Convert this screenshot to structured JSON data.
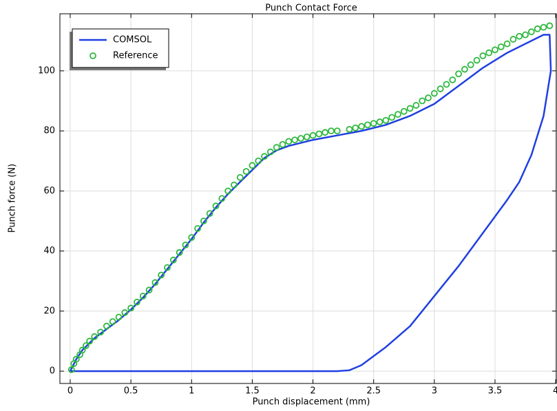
{
  "chart_data": {
    "type": "line",
    "title": "Punch Contact Force",
    "x_label": "Punch displacement (mm)",
    "y_label": "Punch force (N)",
    "xlim": [
      -0.085,
      4.005
    ],
    "ylim": [
      -4.1,
      119
    ],
    "xticks": [
      0,
      0.5,
      1,
      1.5,
      2,
      2.5,
      3,
      3.5,
      4
    ],
    "yticks": [
      0,
      20,
      40,
      60,
      80,
      100
    ],
    "grid": true,
    "legend_loc": "upper left",
    "series": [
      {
        "name": "COMSOL",
        "type": "line",
        "color": "#1f3fe0",
        "x": [
          0,
          0.05,
          0.1,
          0.2,
          0.3,
          0.4,
          0.5,
          0.6,
          0.7,
          0.8,
          0.9,
          1.0,
          1.1,
          1.2,
          1.3,
          1.4,
          1.5,
          1.6,
          1.7,
          1.8,
          1.9,
          2.0,
          2.2,
          2.4,
          2.6,
          2.8,
          3.0,
          3.2,
          3.4,
          3.6,
          3.8,
          3.9,
          3.95,
          3.96,
          3.9,
          3.8,
          3.7,
          3.6,
          3.4,
          3.2,
          3.0,
          2.8,
          2.6,
          2.5,
          2.4,
          2.3,
          2.2,
          0
        ],
        "values": [
          0,
          4,
          7,
          11,
          14,
          17,
          20.5,
          24.5,
          29,
          34,
          39,
          44,
          49.5,
          54.5,
          59,
          63,
          67,
          71,
          73.5,
          75,
          76,
          77,
          78.5,
          80,
          82,
          85,
          89,
          95,
          101,
          106,
          110,
          112,
          112,
          100,
          85,
          72,
          63,
          57,
          46,
          35,
          25,
          15,
          8,
          5,
          2,
          0.3,
          0,
          0
        ]
      },
      {
        "name": "Reference",
        "type": "scatter",
        "color": "#2db83d",
        "x": [
          0.01,
          0.03,
          0.05,
          0.08,
          0.1,
          0.13,
          0.16,
          0.2,
          0.25,
          0.3,
          0.35,
          0.4,
          0.45,
          0.5,
          0.55,
          0.6,
          0.65,
          0.7,
          0.75,
          0.8,
          0.85,
          0.9,
          0.95,
          1.0,
          1.05,
          1.1,
          1.15,
          1.2,
          1.25,
          1.3,
          1.35,
          1.4,
          1.45,
          1.5,
          1.55,
          1.6,
          1.65,
          1.7,
          1.75,
          1.8,
          1.85,
          1.9,
          1.95,
          2.0,
          2.05,
          2.1,
          2.15,
          2.2,
          2.3,
          2.35,
          2.4,
          2.45,
          2.5,
          2.55,
          2.6,
          2.65,
          2.7,
          2.75,
          2.8,
          2.85,
          2.9,
          2.95,
          3.0,
          3.05,
          3.1,
          3.15,
          3.2,
          3.25,
          3.3,
          3.35,
          3.4,
          3.45,
          3.5,
          3.55,
          3.6,
          3.65,
          3.7,
          3.75,
          3.8,
          3.85,
          3.9,
          3.95
        ],
        "values": [
          0.5,
          2.5,
          4,
          5.5,
          7,
          8.5,
          10,
          11.5,
          13,
          15,
          16.5,
          18,
          19.5,
          21,
          23,
          25,
          27,
          29.5,
          32,
          34.5,
          37,
          39.5,
          42,
          44.5,
          47.5,
          50,
          52.5,
          55,
          57.5,
          60,
          62,
          64.5,
          66.5,
          68.5,
          70,
          71.5,
          73,
          74.5,
          75.5,
          76.5,
          77,
          77.5,
          78,
          78.5,
          79,
          79.5,
          80,
          80,
          80.5,
          81,
          81.5,
          82,
          82.5,
          83,
          83.5,
          84.5,
          85.5,
          86.5,
          87.5,
          88.5,
          90,
          91,
          92.5,
          94,
          95.5,
          97,
          99,
          100.5,
          102,
          103.5,
          105,
          106,
          107,
          108,
          109,
          110.5,
          111.5,
          112,
          113,
          114,
          114.5,
          115
        ]
      }
    ]
  }
}
